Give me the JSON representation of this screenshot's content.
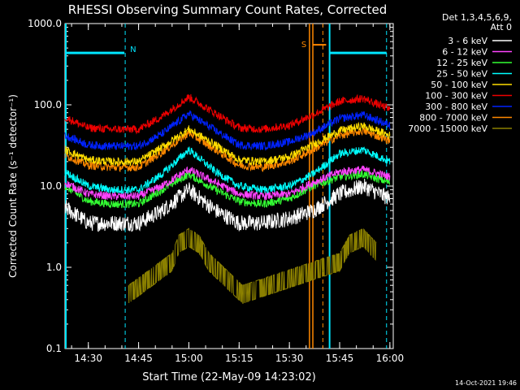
{
  "colors": {
    "background": "#000000",
    "foreground": "#ffffff",
    "night_marker": "#00e5ff",
    "saa_marker": "#ff8800"
  },
  "chart_data": {
    "type": "line",
    "title": "RHESSI Observing Summary Count Rates, Corrected",
    "xlabel": "Start Time (22-May-09 14:23:02)",
    "ylabel": "Corrected Count Rate (s⁻¹ detector⁻¹)",
    "y_scale": "log",
    "ylim": [
      0.1,
      1000.0
    ],
    "xlim": [
      "14:23:02",
      "16:01:00"
    ],
    "y_ticks": [
      "1000.0",
      "100.0",
      "10.0",
      "1.0",
      "0.1"
    ],
    "x_ticks": [
      "14:30",
      "14:45",
      "15:00",
      "15:15",
      "15:30",
      "15:45",
      "16:00"
    ],
    "legend": {
      "position": "top-right",
      "header_line1": "Det 1,3,4,5,6,9,",
      "header_line2": "Att 0"
    },
    "series": [
      {
        "name": "3 - 6 keV",
        "color": "#ffffff",
        "x": [
          "14:23",
          "14:30",
          "14:37",
          "14:45",
          "14:52",
          "15:00",
          "15:08",
          "15:15",
          "15:22",
          "15:30",
          "15:37",
          "15:45",
          "15:52",
          "16:00"
        ],
        "y": [
          5.5,
          3.5,
          3.5,
          3.5,
          5.0,
          9.0,
          5.0,
          3.5,
          3.5,
          4.0,
          5.0,
          8.0,
          10.0,
          7.0
        ]
      },
      {
        "name": "6 - 12 keV",
        "color": "#ff44ff",
        "x": [
          "14:23",
          "14:30",
          "14:37",
          "14:45",
          "14:52",
          "15:00",
          "15:08",
          "15:15",
          "15:22",
          "15:30",
          "15:37",
          "15:45",
          "15:52",
          "16:00"
        ],
        "y": [
          11,
          8,
          7.5,
          7.5,
          10,
          16,
          11,
          8,
          7.5,
          8,
          11,
          15,
          16,
          13
        ]
      },
      {
        "name": "12 - 25 keV",
        "color": "#33ff33",
        "x": [
          "14:23",
          "14:30",
          "14:37",
          "14:45",
          "14:52",
          "15:00",
          "15:08",
          "15:15",
          "15:22",
          "15:30",
          "15:37",
          "15:45",
          "15:52",
          "16:00"
        ],
        "y": [
          10,
          6.5,
          6,
          6,
          9,
          14,
          9,
          6.5,
          6,
          7,
          10,
          13,
          14,
          11
        ]
      },
      {
        "name": "25 - 50 keV",
        "color": "#00ffff",
        "x": [
          "14:23",
          "14:30",
          "14:37",
          "14:45",
          "14:52",
          "15:00",
          "15:08",
          "15:15",
          "15:22",
          "15:30",
          "15:37",
          "15:45",
          "15:52",
          "16:00"
        ],
        "y": [
          15,
          10,
          9,
          9,
          14,
          28,
          15,
          10,
          9,
          10,
          14,
          25,
          28,
          20
        ]
      },
      {
        "name": "50 - 100 keV",
        "color": "#ffdd00",
        "x": [
          "14:23",
          "14:30",
          "14:37",
          "14:45",
          "14:52",
          "15:00",
          "15:08",
          "15:15",
          "15:22",
          "15:30",
          "15:37",
          "15:45",
          "15:52",
          "16:00"
        ],
        "y": [
          28,
          21,
          20,
          20,
          30,
          50,
          32,
          21,
          20,
          23,
          32,
          48,
          55,
          42
        ]
      },
      {
        "name": "100 - 300 keV",
        "color": "#ee0000",
        "x": [
          "14:23",
          "14:30",
          "14:37",
          "14:45",
          "14:52",
          "15:00",
          "15:08",
          "15:15",
          "15:22",
          "15:30",
          "15:37",
          "15:45",
          "15:52",
          "16:00"
        ],
        "y": [
          70,
          52,
          50,
          50,
          72,
          125,
          78,
          52,
          50,
          56,
          75,
          110,
          120,
          88
        ]
      },
      {
        "name": "300 - 800 keV",
        "color": "#0022ff",
        "x": [
          "14:23",
          "14:30",
          "14:37",
          "14:45",
          "14:52",
          "15:00",
          "15:08",
          "15:15",
          "15:22",
          "15:30",
          "15:37",
          "15:45",
          "15:52",
          "16:00"
        ],
        "y": [
          42,
          32,
          31,
          31,
          44,
          78,
          48,
          32,
          31,
          35,
          45,
          68,
          75,
          56
        ]
      },
      {
        "name": "800 - 7000 keV",
        "color": "#ff8800",
        "x": [
          "14:23",
          "14:30",
          "14:37",
          "14:45",
          "14:52",
          "15:00",
          "15:08",
          "15:15",
          "15:22",
          "15:30",
          "15:37",
          "15:45",
          "15:52",
          "16:00"
        ],
        "y": [
          24,
          18,
          17,
          17,
          26,
          45,
          28,
          18,
          17,
          20,
          28,
          42,
          48,
          36
        ]
      },
      {
        "name": "7000 - 15000 keV",
        "color": "#8b8000",
        "x": [
          "14:42",
          "14:55",
          "14:57",
          "15:00",
          "15:03",
          "15:06",
          "15:16",
          "15:45",
          "15:48",
          "15:52",
          "15:56"
        ],
        "y": [
          0.6,
          1.5,
          2.5,
          3.0,
          2.5,
          1.5,
          0.6,
          1.5,
          2.5,
          3.0,
          2.0
        ]
      }
    ],
    "markers": [
      {
        "label": "N",
        "time": "14:41",
        "color": "#00e5ff"
      },
      {
        "label": "S",
        "time": "15:38",
        "color": "#ff8800"
      }
    ]
  },
  "footer": {
    "timestamp": "14-Oct-2021 19:46"
  }
}
